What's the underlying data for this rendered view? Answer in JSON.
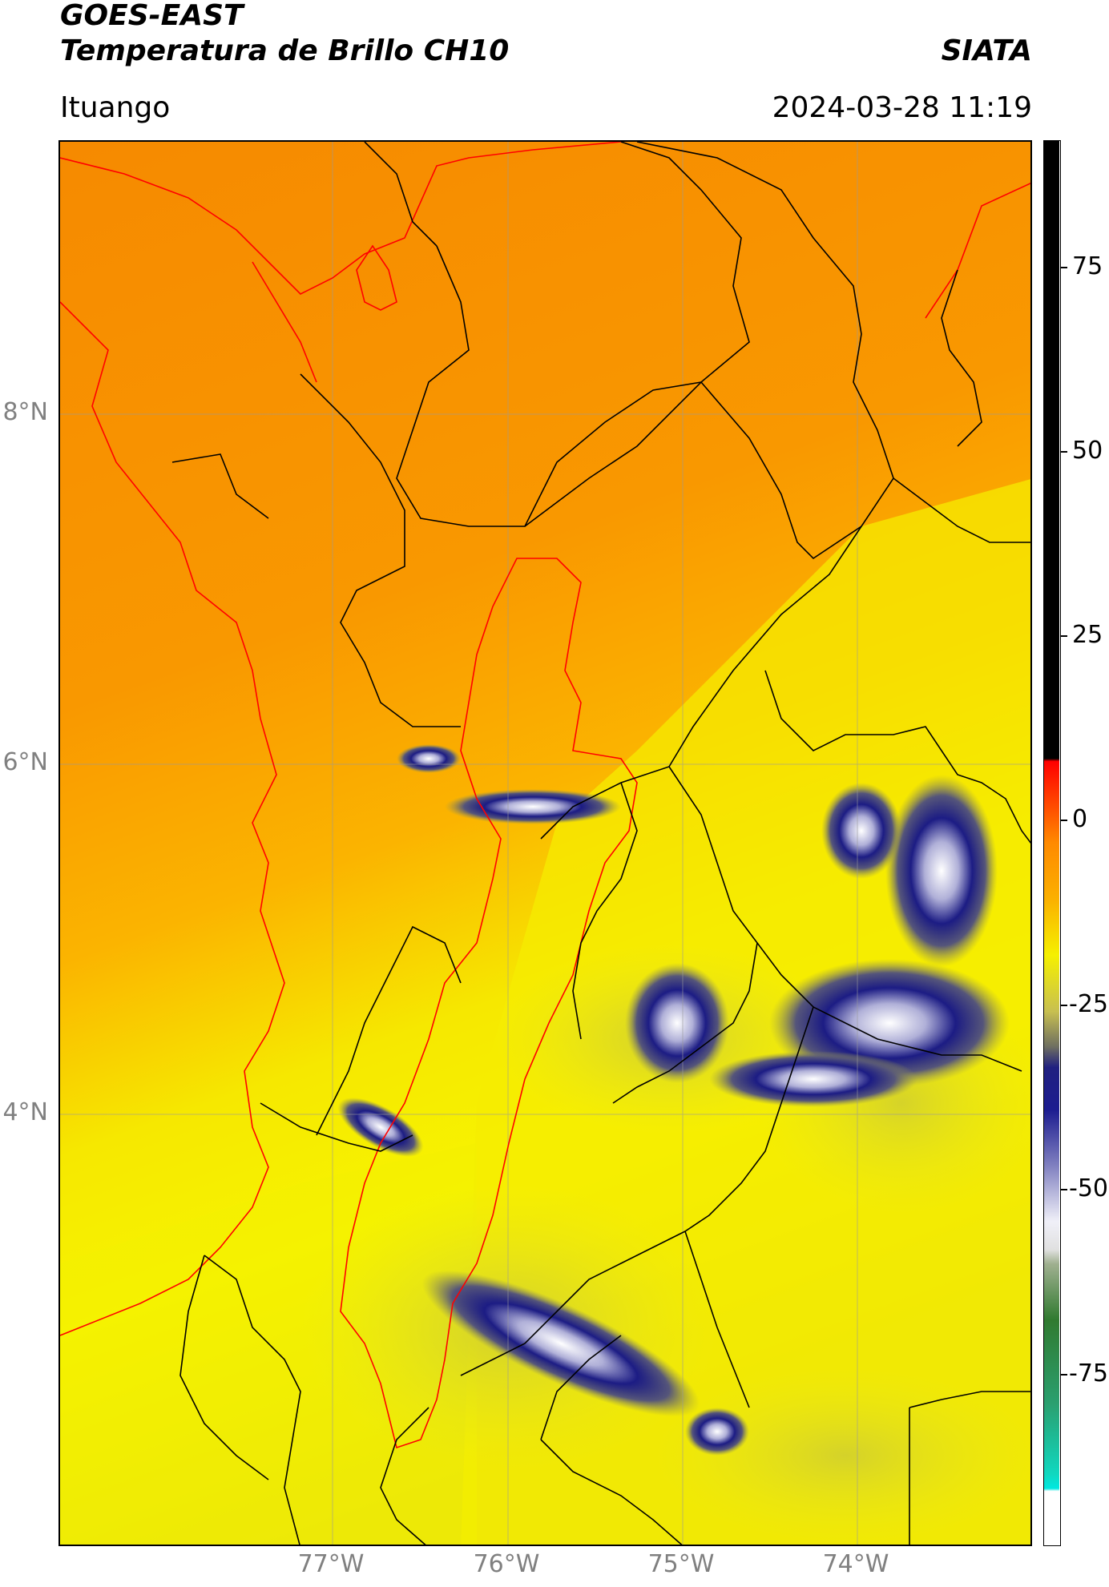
{
  "header": {
    "title_line1": "GOES-EAST",
    "title_line2": "Temperatura de Brillo CH10",
    "organization": "SIATA",
    "location": "Ituango",
    "datetime": "2024-03-28 11:19"
  },
  "map": {
    "lat_labels": [
      "8°N",
      "6°N",
      "4°N"
    ],
    "lon_labels": [
      "77°W",
      "76°W",
      "75°W",
      "74°W"
    ],
    "colors": {
      "warm_orange": "#f89000",
      "orange": "#fba500",
      "yellow": "#f7f500",
      "olive": "#cfcf40",
      "deep_convection": "#1a1a80",
      "cold_core": "#ffffff",
      "border_black": "#000000",
      "border_red": "#ff0000"
    }
  },
  "colorbar": {
    "tick_labels": [
      "75",
      "50",
      "25",
      "0",
      "-25",
      "-50",
      "-75"
    ]
  }
}
